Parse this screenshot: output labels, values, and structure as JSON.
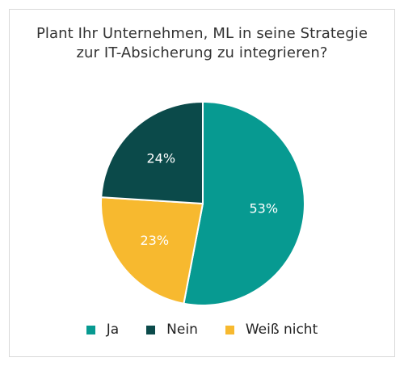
{
  "title": {
    "line1": "Plant Ihr Unternehmen, ML in seine Strategie",
    "line2": "zur IT-Absicherung zu integrieren?"
  },
  "colors": {
    "ja": "#079a91",
    "nein": "#0b4a4a",
    "weiss_nicht": "#f7b92f",
    "separator": "#ffffff"
  },
  "chart_data": {
    "type": "pie",
    "title": "Plant Ihr Unternehmen, ML in seine Strategie zur IT-Absicherung zu integrieren?",
    "categories": [
      "Ja",
      "Weiß nicht",
      "Nein"
    ],
    "values": [
      53,
      23,
      24
    ],
    "labels": [
      "53%",
      "23%",
      "24%"
    ],
    "start": "12 o'clock",
    "direction": "clockwise",
    "legend": "bottom-center"
  },
  "legend": [
    {
      "label": "Ja",
      "color": "#079a91"
    },
    {
      "label": "Nein",
      "color": "#0b4a4a"
    },
    {
      "label": "Weiß nicht",
      "color": "#f7b92f"
    }
  ]
}
